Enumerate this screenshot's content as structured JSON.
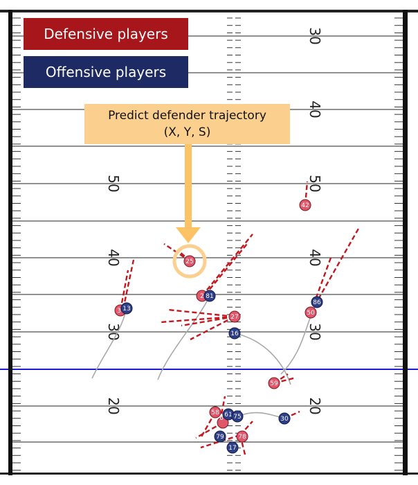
{
  "legend": {
    "defensive_label": "Defensive players",
    "offensive_label": "Offensive players",
    "defense_color": "#a7161b",
    "offense_color": "#1d2a63"
  },
  "callout": {
    "line1": "Predict defender trajectory",
    "line2": "(X, Y, S)",
    "color": "#fbd08f"
  },
  "field_numbers": {
    "left": [
      "50",
      "40",
      "30",
      "20"
    ],
    "right": [
      "30",
      "40",
      "50",
      "40",
      "30",
      "20"
    ]
  },
  "colors": {
    "scrimmage_line": "#1a1ad8",
    "route": "#c2181e",
    "defender_fill": "#e0566a",
    "offense_fill": "#2e3f88"
  },
  "players": {
    "defense": [
      "42",
      "25",
      "2",
      "3",
      "27",
      "50",
      "59",
      "58",
      "6",
      "7",
      "78"
    ],
    "offense": [
      "13",
      "81",
      "86",
      "16",
      "30",
      "61",
      "75",
      "79",
      "17"
    ],
    "highlighted": "25"
  }
}
